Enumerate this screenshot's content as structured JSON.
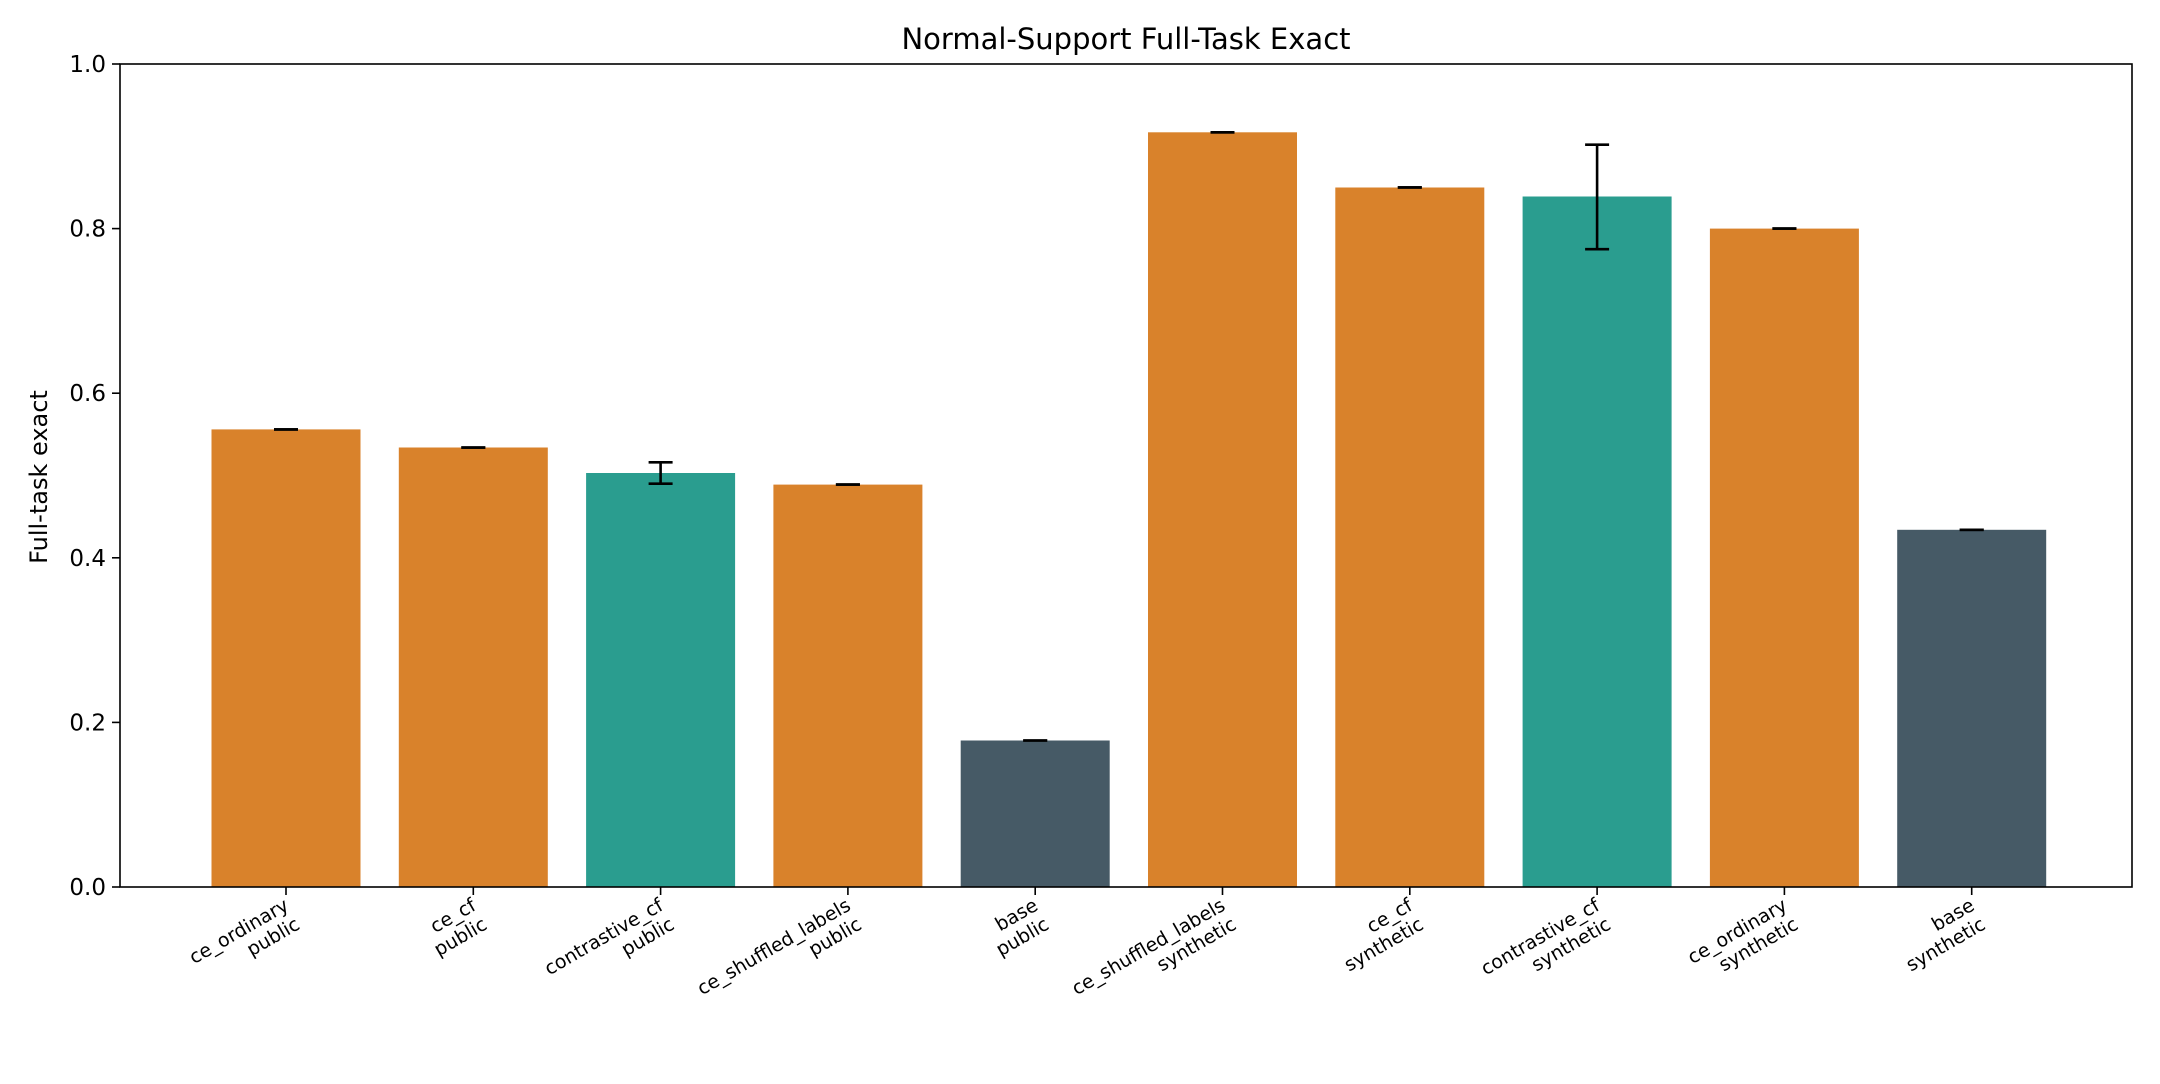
{
  "chart_data": {
    "type": "bar",
    "title": "Normal-Support Full-Task Exact",
    "xlabel": "",
    "ylabel": "Full-task exact",
    "ylim": [
      0,
      1.0
    ],
    "yticks": [
      "0.0",
      "0.2",
      "0.4",
      "0.6",
      "0.8",
      "1.0"
    ],
    "grid": false,
    "categories": [
      [
        "ce_ordinary",
        "public"
      ],
      [
        "ce_cf",
        "public"
      ],
      [
        "contrastive_cf",
        "public"
      ],
      [
        "ce_shuffled_labels",
        "public"
      ],
      [
        "base",
        "public"
      ],
      [
        "ce_shuffled_labels",
        "synthetic"
      ],
      [
        "ce_cf",
        "synthetic"
      ],
      [
        "contrastive_cf",
        "synthetic"
      ],
      [
        "ce_ordinary",
        "synthetic"
      ],
      [
        "base",
        "synthetic"
      ]
    ],
    "values": [
      0.556,
      0.534,
      0.503,
      0.489,
      0.178,
      0.917,
      0.85,
      0.839,
      0.8,
      0.434
    ],
    "error_low": [
      0.556,
      0.534,
      0.49,
      0.489,
      0.178,
      0.917,
      0.85,
      0.775,
      0.8,
      0.434
    ],
    "error_high": [
      0.556,
      0.534,
      0.516,
      0.489,
      0.178,
      0.917,
      0.85,
      0.902,
      0.8,
      0.434
    ],
    "colors": [
      "#d9822b",
      "#d9822b",
      "#2a9d8f",
      "#d9822b",
      "#465a66",
      "#d9822b",
      "#d9822b",
      "#2a9d8f",
      "#d9822b",
      "#465a66"
    ]
  }
}
